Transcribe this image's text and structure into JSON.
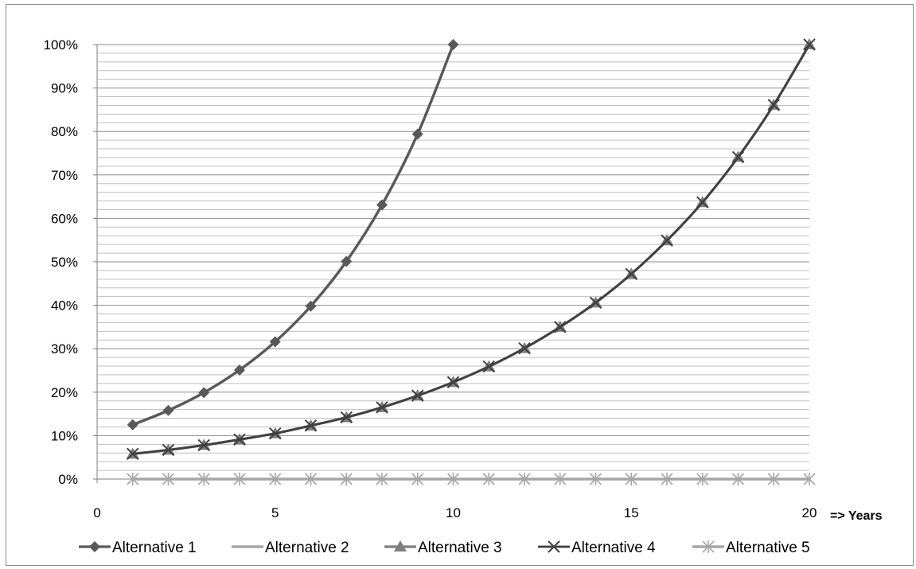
{
  "chart_data": {
    "type": "line",
    "x_unit_label": "=> Years",
    "xlim": [
      0,
      20
    ],
    "ylim": [
      0,
      100
    ],
    "x_ticks": [
      0,
      5,
      10,
      15,
      20
    ],
    "y_ticks": [
      0,
      10,
      20,
      30,
      40,
      50,
      60,
      70,
      80,
      90,
      100
    ],
    "y_tick_labels": [
      "0%",
      "10%",
      "20%",
      "30%",
      "40%",
      "50%",
      "60%",
      "70%",
      "80%",
      "90%",
      "100%"
    ],
    "minor_grid_step": 2,
    "grid": true,
    "legend_position": "bottom",
    "series": [
      {
        "name": "Alternative 1",
        "marker": "diamond",
        "color": "#595959",
        "x": [
          1,
          2,
          3,
          4,
          5,
          6,
          7,
          8,
          9,
          10
        ],
        "y": [
          12.5,
          15.8,
          19.9,
          25.1,
          31.6,
          39.8,
          50.1,
          63.1,
          79.4,
          100
        ]
      },
      {
        "name": "Alternative 2",
        "marker": "none",
        "color": "#a6a6a6",
        "x": [
          1,
          2,
          3,
          4,
          5,
          6,
          7,
          8,
          9,
          10
        ],
        "y": [
          12.5,
          15.8,
          19.9,
          25.1,
          31.6,
          39.8,
          50.1,
          63.1,
          79.4,
          100
        ]
      },
      {
        "name": "Alternative 3",
        "marker": "triangle",
        "color": "#7f7f7f",
        "x": [
          1,
          2,
          3,
          4,
          5,
          6,
          7,
          8,
          9,
          10,
          11,
          12,
          13,
          14,
          15,
          16,
          17,
          18,
          19,
          20
        ],
        "y": [
          5.8,
          6.7,
          7.8,
          9.1,
          10.5,
          12.3,
          14.2,
          16.5,
          19.2,
          22.3,
          25.9,
          30.1,
          35.0,
          40.6,
          47.2,
          54.9,
          63.7,
          74.1,
          86.1,
          100
        ]
      },
      {
        "name": "Alternative 4",
        "marker": "x",
        "color": "#404040",
        "x": [
          1,
          2,
          3,
          4,
          5,
          6,
          7,
          8,
          9,
          10,
          11,
          12,
          13,
          14,
          15,
          16,
          17,
          18,
          19,
          20
        ],
        "y": [
          5.8,
          6.7,
          7.8,
          9.1,
          10.5,
          12.3,
          14.2,
          16.5,
          19.2,
          22.3,
          25.9,
          30.1,
          35.0,
          40.6,
          47.2,
          54.9,
          63.7,
          74.1,
          86.1,
          100
        ]
      },
      {
        "name": "Alternative 5",
        "marker": "asterisk",
        "color": "#a6a6a6",
        "x": [
          1,
          2,
          3,
          4,
          5,
          6,
          7,
          8,
          9,
          10,
          11,
          12,
          13,
          14,
          15,
          16,
          17,
          18,
          19,
          20
        ],
        "y": [
          0,
          0,
          0,
          0,
          0,
          0,
          0,
          0,
          0,
          0,
          0,
          0,
          0,
          0,
          0,
          0,
          0,
          0,
          0,
          0
        ]
      }
    ]
  }
}
